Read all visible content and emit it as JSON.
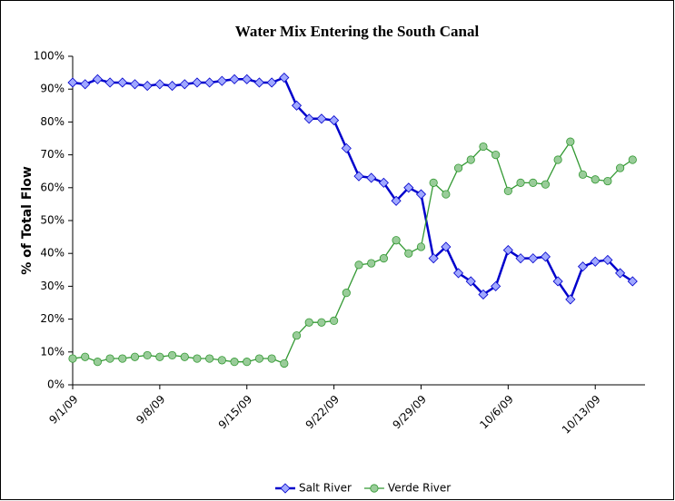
{
  "chart_data": {
    "type": "line",
    "title": "Water Mix Entering the South Canal",
    "y_label": "% of Total Flow",
    "x": [
      "9/1/09",
      "9/2/09",
      "9/3/09",
      "9/4/09",
      "9/5/09",
      "9/6/09",
      "9/7/09",
      "9/8/09",
      "9/9/09",
      "9/10/09",
      "9/11/09",
      "9/12/09",
      "9/13/09",
      "9/14/09",
      "9/15/09",
      "9/16/09",
      "9/17/09",
      "9/18/09",
      "9/19/09",
      "9/20/09",
      "9/21/09",
      "9/22/09",
      "9/23/09",
      "9/24/09",
      "9/25/09",
      "9/26/09",
      "9/27/09",
      "9/28/09",
      "9/29/09",
      "9/30/09",
      "10/1/09",
      "10/2/09",
      "10/3/09",
      "10/4/09",
      "10/5/09",
      "10/6/09",
      "10/7/09",
      "10/8/09",
      "10/9/09",
      "10/10/09",
      "10/11/09",
      "10/12/09",
      "10/13/09",
      "10/14/09",
      "10/15/09",
      "10/16/09"
    ],
    "series": [
      {
        "name": "Salt River",
        "color": "#0000cc",
        "marker": "diamond",
        "marker_fill": "#a0a8ff",
        "values": [
          92,
          91.5,
          93,
          92,
          92,
          91.5,
          91,
          91.5,
          91,
          91.5,
          92,
          92,
          92.5,
          93,
          93,
          92,
          92,
          93.5,
          85,
          81,
          81,
          80.5,
          72,
          63.5,
          63,
          61.5,
          56,
          60,
          58,
          38.5,
          42,
          34,
          31.5,
          27.5,
          30,
          41,
          38.5,
          38.5,
          39,
          31.5,
          26,
          36,
          37.5,
          38,
          34,
          31.5
        ]
      },
      {
        "name": "Verde River",
        "color": "#339933",
        "marker": "circle",
        "marker_fill": "#99cc99",
        "values": [
          8,
          8.5,
          7,
          8,
          8,
          8.5,
          9,
          8.5,
          9,
          8.5,
          8,
          8,
          7.5,
          7,
          7,
          8,
          8,
          6.5,
          15,
          19,
          19,
          19.5,
          28,
          36.5,
          37,
          38.5,
          44,
          40,
          42,
          61.5,
          58,
          66,
          68.5,
          72.5,
          70,
          59,
          61.5,
          61.5,
          61,
          68.5,
          74,
          64,
          62.5,
          62,
          66,
          68.5
        ]
      }
    ],
    "xlim": [
      "9/1/09",
      "10/17/09"
    ],
    "xticks": [
      "9/1/09",
      "9/8/09",
      "9/15/09",
      "9/22/09",
      "9/29/09",
      "10/6/09",
      "10/13/09"
    ],
    "ylim": [
      0,
      100
    ],
    "yticks": [
      {
        "value": 0,
        "label": "0%"
      },
      {
        "value": 10,
        "label": "10%"
      },
      {
        "value": 20,
        "label": "20%"
      },
      {
        "value": 30,
        "label": "30%"
      },
      {
        "value": 40,
        "label": "40%"
      },
      {
        "value": 50,
        "label": "50%"
      },
      {
        "value": 60,
        "label": "60%"
      },
      {
        "value": 70,
        "label": "70%"
      },
      {
        "value": 80,
        "label": "80%"
      },
      {
        "value": 90,
        "label": "90%"
      },
      {
        "value": 100,
        "label": "100%"
      }
    ],
    "grid": false,
    "legend": "bottom"
  }
}
